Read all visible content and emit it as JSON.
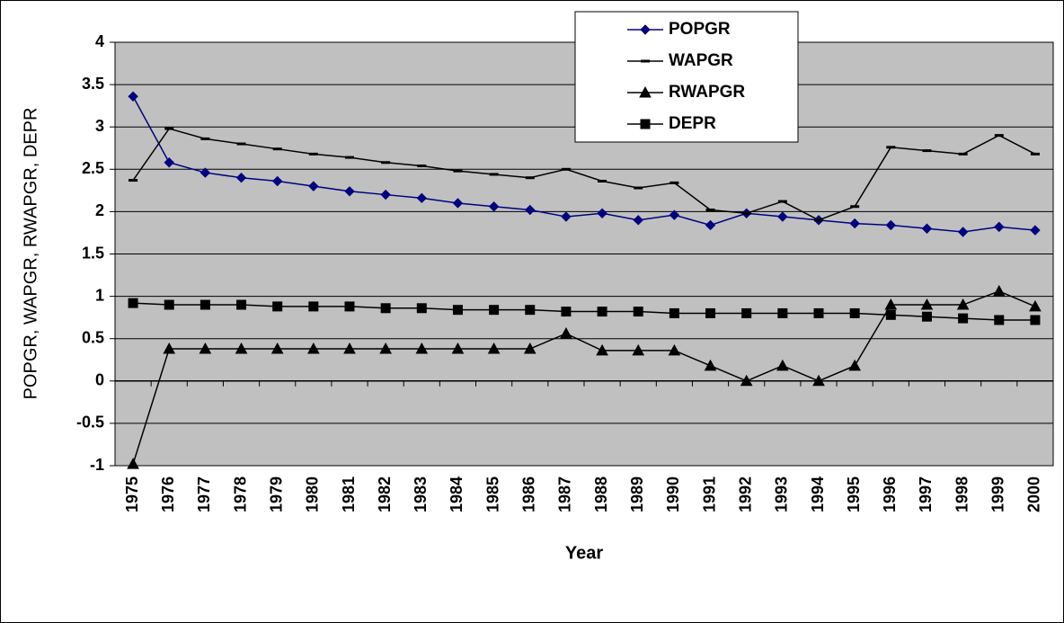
{
  "chart_data": {
    "type": "line",
    "x_label": "Year",
    "y_label": "POPGR, WAPGR, RWAPGR, DEPR",
    "categories": [
      "1975",
      "1976",
      "1977",
      "1978",
      "1979",
      "1980",
      "1981",
      "1982",
      "1983",
      "1984",
      "1985",
      "1986",
      "1987",
      "1988",
      "1989",
      "1990",
      "1991",
      "1992",
      "1993",
      "1994",
      "1995",
      "1996",
      "1997",
      "1998",
      "1999",
      "2000"
    ],
    "series": [
      {
        "name": "POPGR",
        "color": "#000080",
        "marker": "diamond",
        "values": [
          3.36,
          2.58,
          2.46,
          2.4,
          2.36,
          2.3,
          2.24,
          2.2,
          2.16,
          2.1,
          2.06,
          2.02,
          1.94,
          1.98,
          1.9,
          1.96,
          1.84,
          1.98,
          1.94,
          1.9,
          1.86,
          1.84,
          1.8,
          1.76,
          1.82,
          1.78
        ]
      },
      {
        "name": "WAPGR",
        "color": "#000000",
        "marker": "dash",
        "values": [
          2.37,
          2.98,
          2.86,
          2.8,
          2.74,
          2.68,
          2.64,
          2.58,
          2.54,
          2.48,
          2.44,
          2.4,
          2.5,
          2.36,
          2.28,
          2.34,
          2.02,
          1.98,
          2.12,
          1.9,
          2.06,
          2.76,
          2.72,
          2.68,
          2.9,
          2.68
        ]
      },
      {
        "name": "RWAPGR",
        "color": "#000000",
        "marker": "triangle",
        "values": [
          -0.98,
          0.38,
          0.38,
          0.38,
          0.38,
          0.38,
          0.38,
          0.38,
          0.38,
          0.38,
          0.38,
          0.38,
          0.56,
          0.36,
          0.36,
          0.36,
          0.18,
          0.0,
          0.18,
          0.0,
          0.18,
          0.9,
          0.9,
          0.9,
          1.06,
          0.88
        ]
      },
      {
        "name": "DEPR",
        "color": "#000000",
        "marker": "square",
        "values": [
          0.92,
          0.9,
          0.9,
          0.9,
          0.88,
          0.88,
          0.88,
          0.86,
          0.86,
          0.84,
          0.84,
          0.84,
          0.82,
          0.82,
          0.82,
          0.8,
          0.8,
          0.8,
          0.8,
          0.8,
          0.8,
          0.78,
          0.76,
          0.74,
          0.72,
          0.72
        ]
      }
    ],
    "ylim": [
      -1,
      4
    ],
    "yticks": [
      -1,
      -0.5,
      0,
      0.5,
      1,
      1.5,
      2,
      2.5,
      3,
      3.5,
      4
    ],
    "grid": true,
    "legend": "top-right",
    "plot_background": "#c0c0c0"
  }
}
